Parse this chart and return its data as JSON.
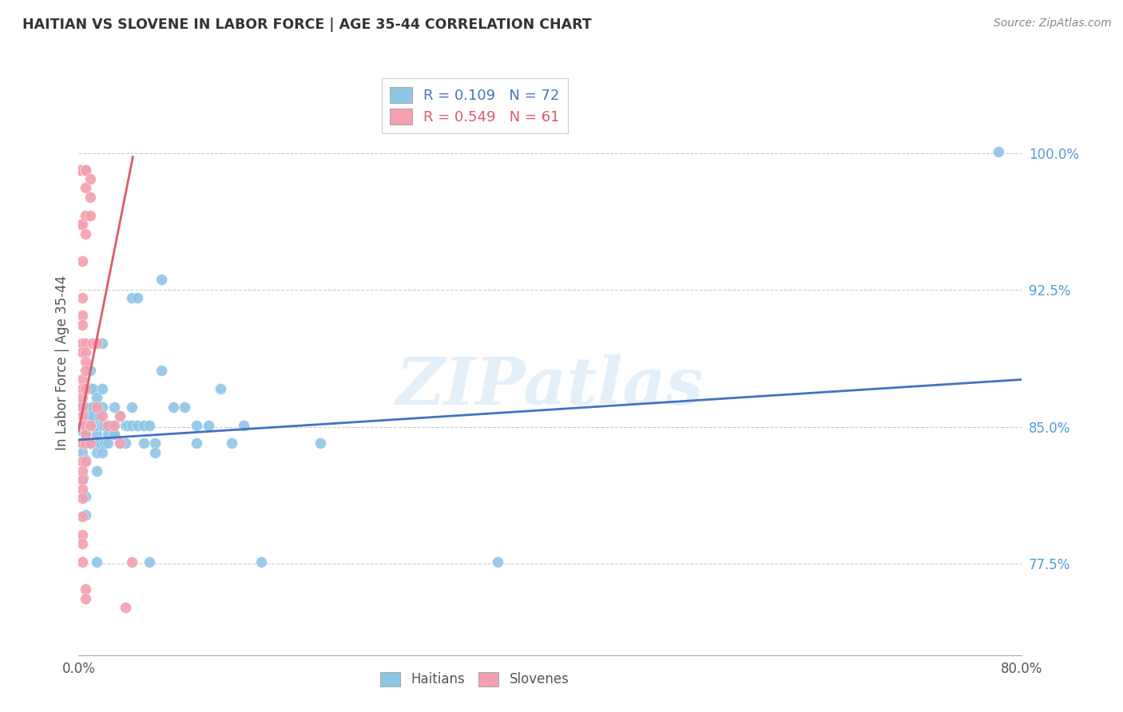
{
  "title": "HAITIAN VS SLOVENE IN LABOR FORCE | AGE 35-44 CORRELATION CHART",
  "source": "Source: ZipAtlas.com",
  "ylabel": "In Labor Force | Age 35-44",
  "xlim": [
    0.0,
    0.8
  ],
  "ylim": [
    0.725,
    1.045
  ],
  "yticks": [
    0.775,
    0.85,
    0.925,
    1.0
  ],
  "ytick_labels": [
    "77.5%",
    "85.0%",
    "92.5%",
    "100.0%"
  ],
  "xticks": [
    0.0,
    0.1,
    0.2,
    0.3,
    0.4,
    0.5,
    0.6,
    0.7,
    0.8
  ],
  "xtick_labels": [
    "0.0%",
    "",
    "",
    "",
    "",
    "",
    "",
    "",
    "80.0%"
  ],
  "haitian_color": "#8ec6e6",
  "slovene_color": "#f4a0b0",
  "trend_haitian_color": "#4472c4",
  "trend_slovene_color": "#e05a6a",
  "legend_haitian_R": "0.109",
  "legend_haitian_N": "72",
  "legend_slovene_R": "0.549",
  "legend_slovene_N": "61",
  "watermark": "ZIPatlas",
  "haitian_points": [
    [
      0.002,
      0.848
    ],
    [
      0.003,
      0.862
    ],
    [
      0.003,
      0.836
    ],
    [
      0.004,
      0.822
    ],
    [
      0.006,
      0.852
    ],
    [
      0.006,
      0.861
    ],
    [
      0.006,
      0.832
    ],
    [
      0.006,
      0.812
    ],
    [
      0.006,
      0.802
    ],
    [
      0.006,
      0.846
    ],
    [
      0.008,
      0.856
    ],
    [
      0.008,
      0.871
    ],
    [
      0.01,
      0.881
    ],
    [
      0.01,
      0.851
    ],
    [
      0.01,
      0.871
    ],
    [
      0.01,
      0.841
    ],
    [
      0.012,
      0.861
    ],
    [
      0.012,
      0.841
    ],
    [
      0.012,
      0.871
    ],
    [
      0.012,
      0.856
    ],
    [
      0.015,
      0.866
    ],
    [
      0.015,
      0.846
    ],
    [
      0.015,
      0.851
    ],
    [
      0.015,
      0.836
    ],
    [
      0.015,
      0.826
    ],
    [
      0.015,
      0.776
    ],
    [
      0.018,
      0.856
    ],
    [
      0.018,
      0.841
    ],
    [
      0.02,
      0.896
    ],
    [
      0.02,
      0.871
    ],
    [
      0.02,
      0.861
    ],
    [
      0.02,
      0.851
    ],
    [
      0.02,
      0.836
    ],
    [
      0.022,
      0.841
    ],
    [
      0.022,
      0.851
    ],
    [
      0.025,
      0.851
    ],
    [
      0.025,
      0.846
    ],
    [
      0.025,
      0.841
    ],
    [
      0.028,
      0.851
    ],
    [
      0.03,
      0.861
    ],
    [
      0.03,
      0.846
    ],
    [
      0.03,
      0.846
    ],
    [
      0.035,
      0.856
    ],
    [
      0.035,
      0.841
    ],
    [
      0.04,
      0.851
    ],
    [
      0.04,
      0.841
    ],
    [
      0.042,
      0.851
    ],
    [
      0.045,
      0.921
    ],
    [
      0.045,
      0.861
    ],
    [
      0.045,
      0.851
    ],
    [
      0.05,
      0.921
    ],
    [
      0.05,
      0.851
    ],
    [
      0.055,
      0.841
    ],
    [
      0.055,
      0.851
    ],
    [
      0.06,
      0.776
    ],
    [
      0.06,
      0.851
    ],
    [
      0.065,
      0.841
    ],
    [
      0.065,
      0.836
    ],
    [
      0.07,
      0.931
    ],
    [
      0.07,
      0.881
    ],
    [
      0.08,
      0.861
    ],
    [
      0.09,
      0.861
    ],
    [
      0.1,
      0.851
    ],
    [
      0.1,
      0.841
    ],
    [
      0.11,
      0.851
    ],
    [
      0.12,
      0.871
    ],
    [
      0.13,
      0.841
    ],
    [
      0.14,
      0.851
    ],
    [
      0.155,
      0.776
    ],
    [
      0.205,
      0.841
    ],
    [
      0.355,
      0.776
    ],
    [
      0.78,
      1.001
    ]
  ],
  "slovene_points": [
    [
      0.001,
      0.991
    ],
    [
      0.002,
      0.991
    ],
    [
      0.002,
      0.961
    ],
    [
      0.003,
      0.961
    ],
    [
      0.003,
      0.941
    ],
    [
      0.003,
      0.921
    ],
    [
      0.003,
      0.911
    ],
    [
      0.003,
      0.906
    ],
    [
      0.003,
      0.896
    ],
    [
      0.003,
      0.896
    ],
    [
      0.003,
      0.891
    ],
    [
      0.003,
      0.876
    ],
    [
      0.003,
      0.871
    ],
    [
      0.003,
      0.866
    ],
    [
      0.003,
      0.861
    ],
    [
      0.003,
      0.856
    ],
    [
      0.003,
      0.851
    ],
    [
      0.003,
      0.841
    ],
    [
      0.003,
      0.841
    ],
    [
      0.003,
      0.831
    ],
    [
      0.003,
      0.826
    ],
    [
      0.003,
      0.821
    ],
    [
      0.003,
      0.816
    ],
    [
      0.003,
      0.811
    ],
    [
      0.003,
      0.801
    ],
    [
      0.003,
      0.791
    ],
    [
      0.003,
      0.786
    ],
    [
      0.003,
      0.776
    ],
    [
      0.006,
      0.991
    ],
    [
      0.006,
      0.991
    ],
    [
      0.006,
      0.991
    ],
    [
      0.006,
      0.981
    ],
    [
      0.006,
      0.966
    ],
    [
      0.006,
      0.956
    ],
    [
      0.006,
      0.896
    ],
    [
      0.006,
      0.891
    ],
    [
      0.006,
      0.886
    ],
    [
      0.006,
      0.881
    ],
    [
      0.006,
      0.871
    ],
    [
      0.006,
      0.851
    ],
    [
      0.006,
      0.846
    ],
    [
      0.006,
      0.841
    ],
    [
      0.006,
      0.831
    ],
    [
      0.006,
      0.761
    ],
    [
      0.006,
      0.756
    ],
    [
      0.01,
      0.986
    ],
    [
      0.01,
      0.976
    ],
    [
      0.01,
      0.966
    ],
    [
      0.01,
      0.851
    ],
    [
      0.01,
      0.851
    ],
    [
      0.01,
      0.841
    ],
    [
      0.012,
      0.896
    ],
    [
      0.015,
      0.896
    ],
    [
      0.015,
      0.861
    ],
    [
      0.02,
      0.856
    ],
    [
      0.025,
      0.851
    ],
    [
      0.03,
      0.851
    ],
    [
      0.035,
      0.856
    ],
    [
      0.035,
      0.841
    ],
    [
      0.04,
      0.751
    ],
    [
      0.045,
      0.776
    ]
  ],
  "haitian_trend_x": [
    0.0,
    0.8
  ],
  "haitian_trend_y": [
    0.843,
    0.876
  ],
  "slovene_trend_x": [
    0.0,
    0.046
  ],
  "slovene_trend_y": [
    0.848,
    0.998
  ]
}
